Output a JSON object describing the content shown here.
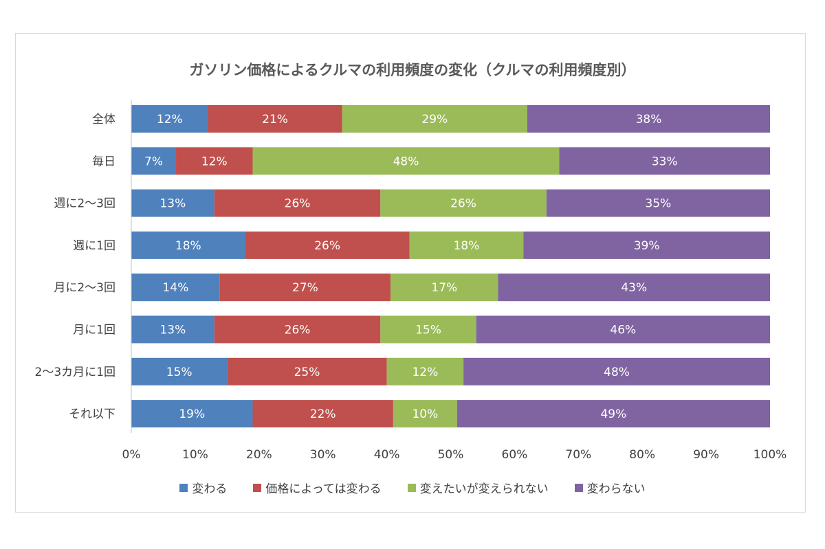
{
  "chart_data": {
    "type": "bar",
    "orientation": "horizontal",
    "stacked": true,
    "title": "ガソリン価格によるクルマの利用頻度の変化（クルマの利用頻度別）",
    "categories": [
      "全体",
      "毎日",
      "週に2～3回",
      "週に1回",
      "月に2～3回",
      "月に1回",
      "2～3カ月に1回",
      "それ以下"
    ],
    "series": [
      {
        "name": "変わる",
        "color": "#4f81bd",
        "values": [
          12,
          7,
          13,
          18,
          14,
          13,
          15,
          19
        ]
      },
      {
        "name": "価格によっては変わる",
        "color": "#c0504d",
        "values": [
          21,
          12,
          26,
          26,
          27,
          26,
          25,
          22
        ]
      },
      {
        "name": "変えたいが変えられない",
        "color": "#9bbb59",
        "values": [
          29,
          48,
          26,
          18,
          17,
          15,
          12,
          10
        ]
      },
      {
        "name": "変わらない",
        "color": "#8064a2",
        "values": [
          38,
          33,
          35,
          39,
          43,
          46,
          48,
          49
        ]
      }
    ],
    "xlim": [
      0,
      100
    ],
    "xticks": [
      "0%",
      "10%",
      "20%",
      "30%",
      "40%",
      "50%",
      "60%",
      "70%",
      "80%",
      "90%",
      "100%"
    ],
    "value_suffix": "%",
    "legend_position": "bottom",
    "grid": false
  }
}
